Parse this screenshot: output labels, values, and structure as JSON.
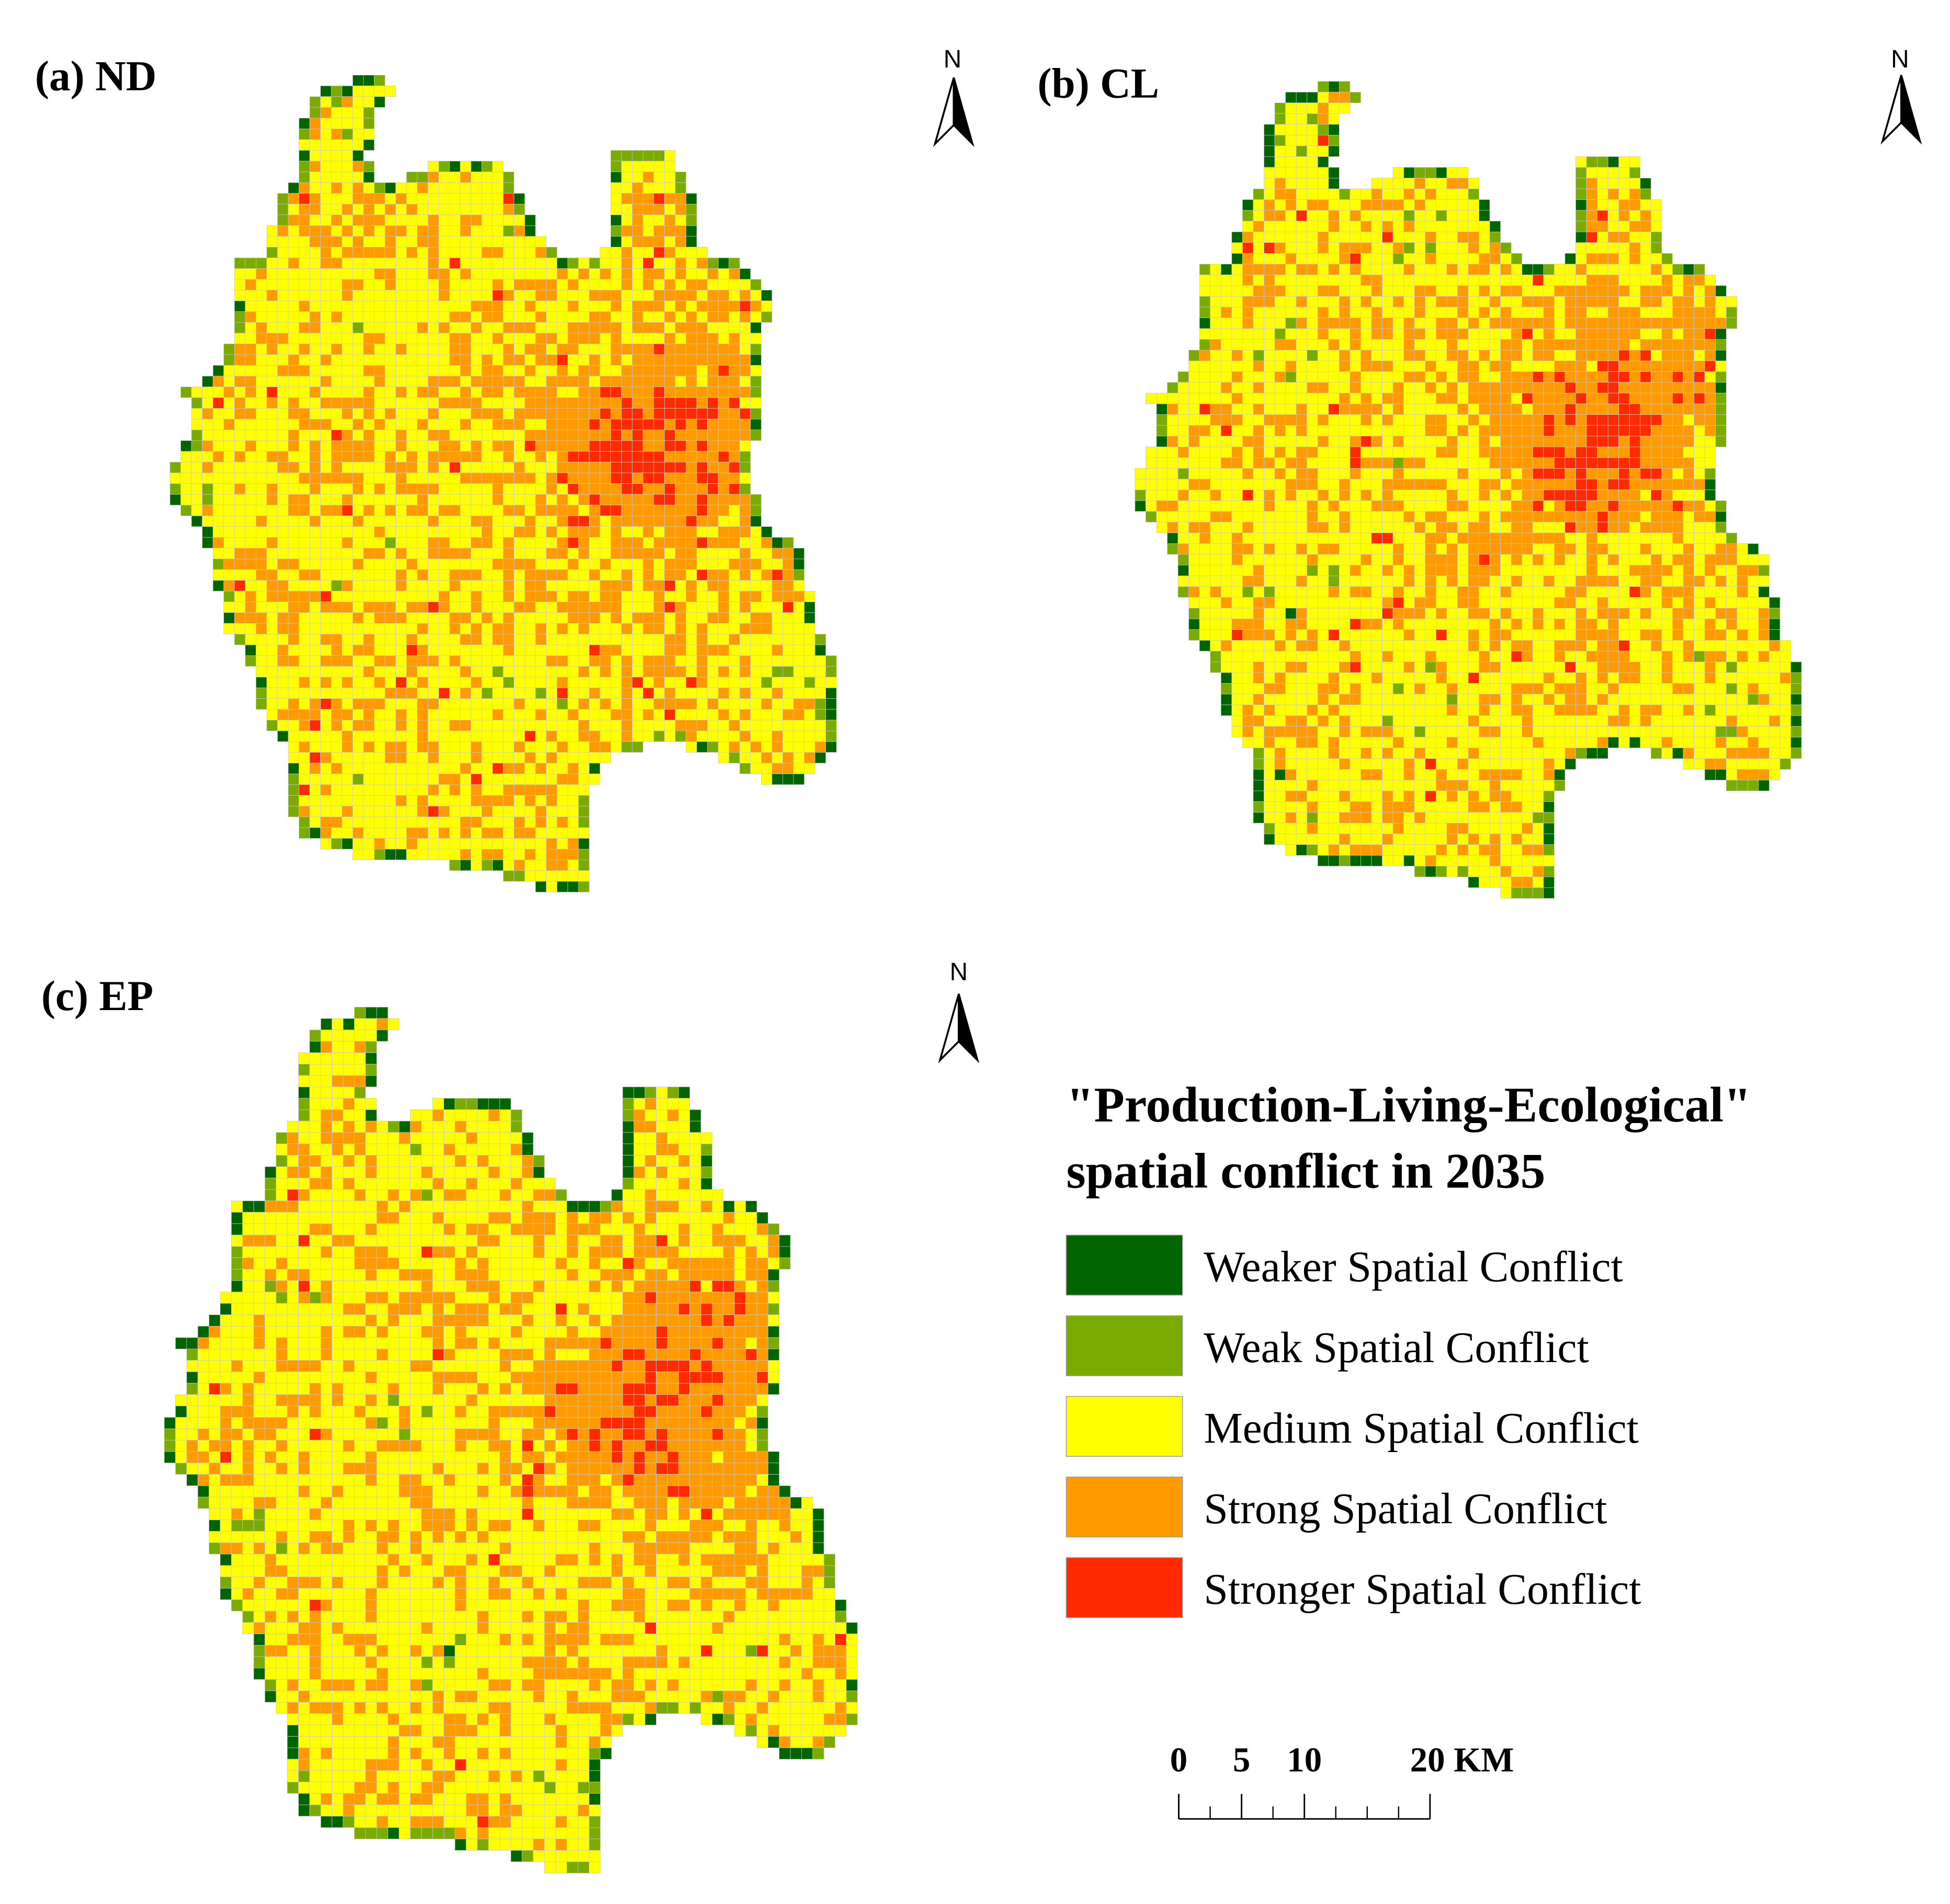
{
  "panels": [
    {
      "title": "(a) ND",
      "north": "N"
    },
    {
      "title": "(b) CL",
      "north": "N"
    },
    {
      "title": "(c) EP",
      "north": "N"
    }
  ],
  "legend": {
    "title_lines": [
      "\"Production-Living-Ecological\"",
      "spatial conflict in 2035"
    ],
    "items": [
      {
        "label": "Weaker Spatial Conflict",
        "color": "#006400"
      },
      {
        "label": "Weak Spatial Conflict",
        "color": "#7aab00"
      },
      {
        "label": "Medium Spatial Conflict",
        "color": "#ffff00"
      },
      {
        "label": "Strong Spatial Conflict",
        "color": "#ff9a00"
      },
      {
        "label": "Stronger Spatial Conflict",
        "color": "#ff2a00"
      }
    ]
  },
  "scale_bar": {
    "range": [
      0,
      20
    ],
    "ticks": [
      0,
      5,
      10,
      {
        "value": 20,
        "label": "20 KM"
      }
    ]
  }
}
